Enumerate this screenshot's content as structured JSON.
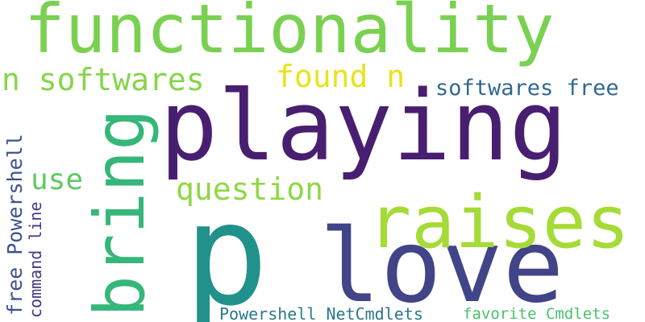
{
  "words": [
    {
      "key": "functionality",
      "text": "functionality",
      "color": "#7ad151"
    },
    {
      "key": "playing",
      "text": "playing",
      "color": "#481f70"
    },
    {
      "key": "p",
      "text": "p",
      "color": "#21918c"
    },
    {
      "key": "love",
      "text": "love",
      "color": "#414487"
    },
    {
      "key": "raises",
      "text": "raises",
      "color": "#a5db36"
    },
    {
      "key": "bring",
      "text": "bring",
      "color": "#35b779"
    },
    {
      "key": "n_softwares",
      "text": "n softwares",
      "color": "#86d549"
    },
    {
      "key": "found_n",
      "text": "found n",
      "color": "#e8e419"
    },
    {
      "key": "softwares_free",
      "text": "softwares free",
      "color": "#31688e"
    },
    {
      "key": "question",
      "text": "question",
      "color": "#8fd744"
    },
    {
      "key": "use",
      "text": "use",
      "color": "#5ec962"
    },
    {
      "key": "free_powershell",
      "text": "free Powershell",
      "color": "#3b528b"
    },
    {
      "key": "command_line",
      "text": "command line",
      "color": "#443983"
    },
    {
      "key": "powershell_netcmdlets",
      "text": "Powershell NetCmdlets",
      "color": "#2a788e"
    },
    {
      "key": "favorite_cmdlets",
      "text": "favorite Cmdlets",
      "color": "#4ac16d"
    }
  ]
}
